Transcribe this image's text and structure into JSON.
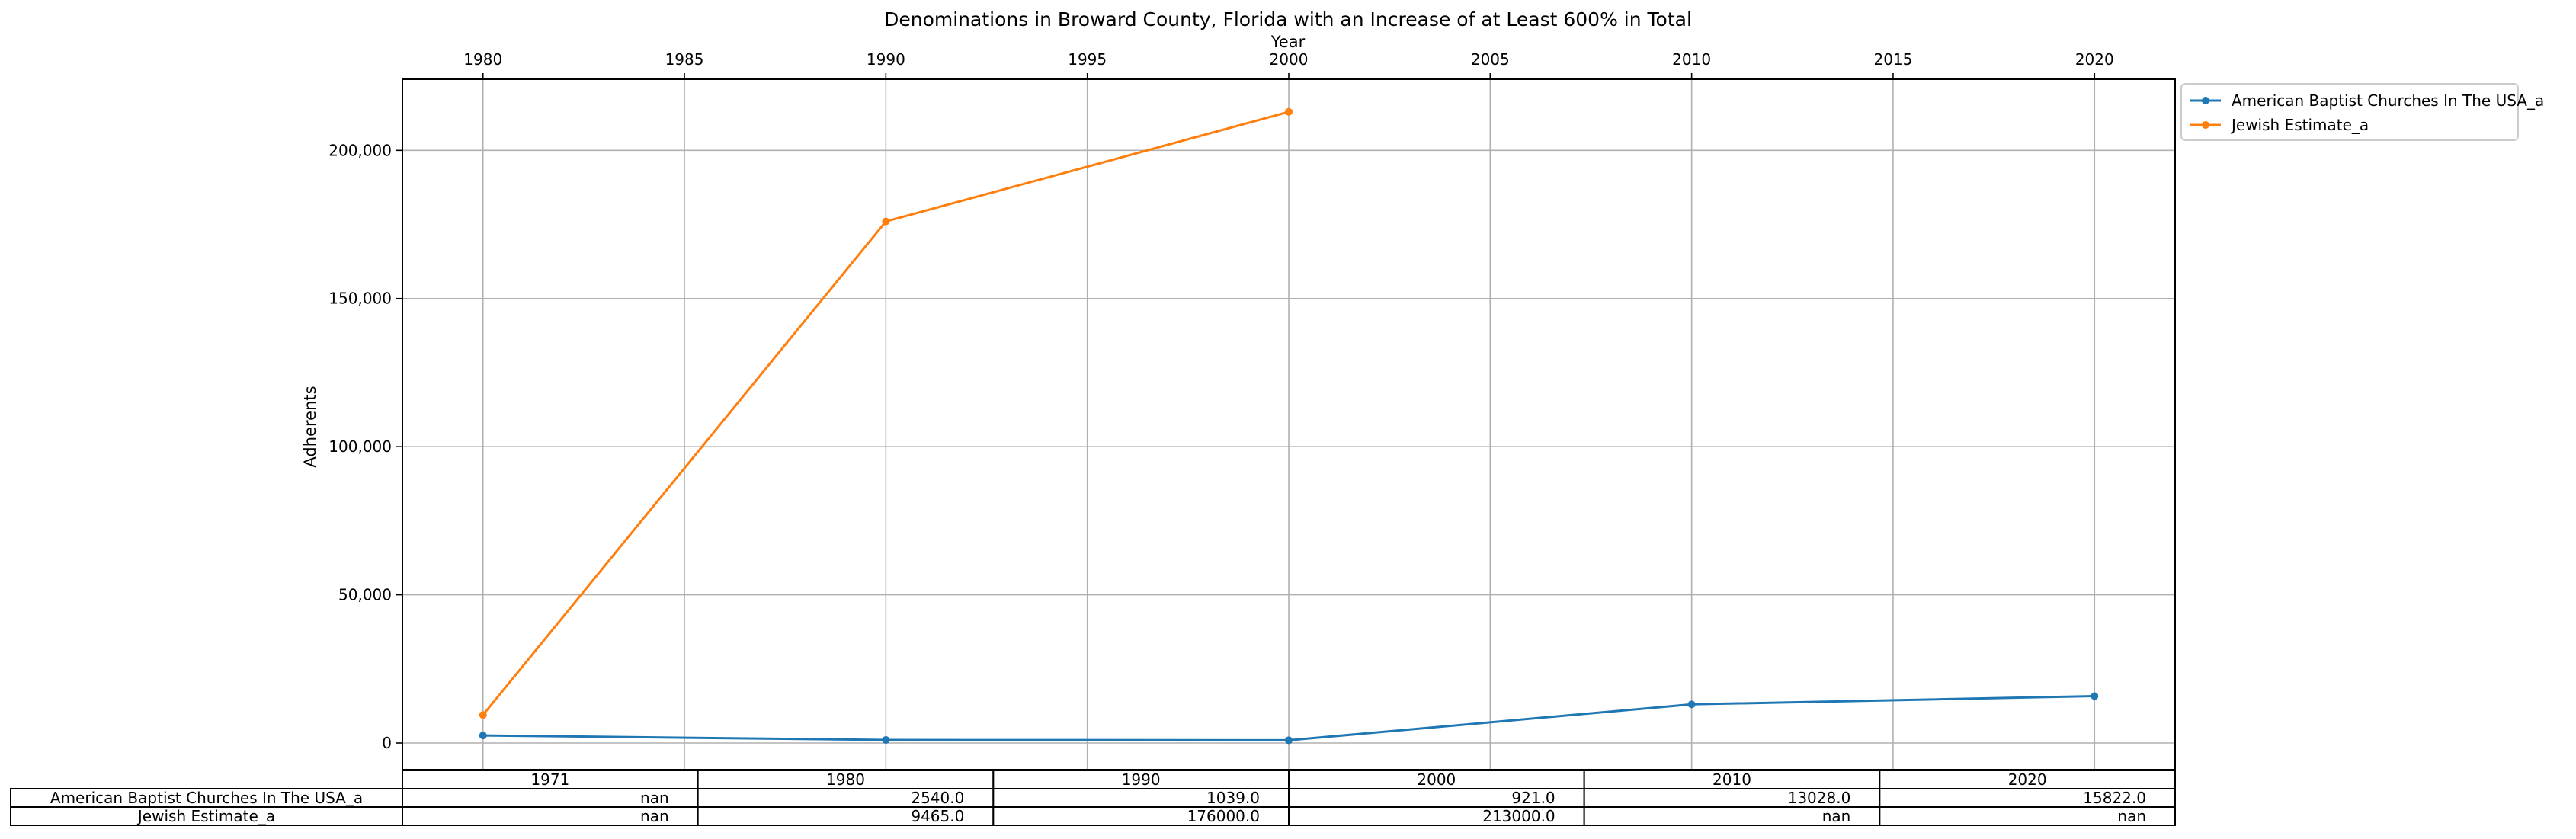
{
  "chart_data": {
    "type": "line",
    "title": "Denominations in Broward County, Florida with an Increase of at Least 600% in Total",
    "xlabel": "Year",
    "ylabel": "Adherents",
    "xlim": [
      1978,
      2022
    ],
    "ylim": [
      -9000,
      224000
    ],
    "x_ticks": [
      1980,
      1985,
      1990,
      1995,
      2000,
      2005,
      2010,
      2015,
      2020
    ],
    "y_ticks": [
      0,
      50000,
      100000,
      150000,
      200000
    ],
    "y_tick_labels": [
      "0",
      "50,000",
      "100,000",
      "150,000",
      "200,000"
    ],
    "x_axis_position": "top",
    "grid": true,
    "legend_placement": "outside-top-right",
    "series": [
      {
        "name": "American Baptist Churches In The USA_a",
        "color": "#1f77b4",
        "x": [
          1980,
          1990,
          2000,
          2010,
          2020
        ],
        "y": [
          2540,
          1039,
          921,
          13028,
          15822
        ]
      },
      {
        "name": "Jewish Estimate_a",
        "color": "#ff7f0e",
        "x": [
          1980,
          1990,
          2000
        ],
        "y": [
          9465,
          176000,
          213000
        ]
      }
    ],
    "table": {
      "columns": [
        "1971",
        "1980",
        "1990",
        "2000",
        "2010",
        "2020"
      ],
      "rows": [
        {
          "label": "American Baptist Churches In The USA_a",
          "cells": [
            "nan",
            "2540.0",
            "1039.0",
            "921.0",
            "13028.0",
            "15822.0"
          ]
        },
        {
          "label": "Jewish Estimate_a",
          "cells": [
            "nan",
            "9465.0",
            "176000.0",
            "213000.0",
            "nan",
            "nan"
          ]
        }
      ]
    }
  }
}
